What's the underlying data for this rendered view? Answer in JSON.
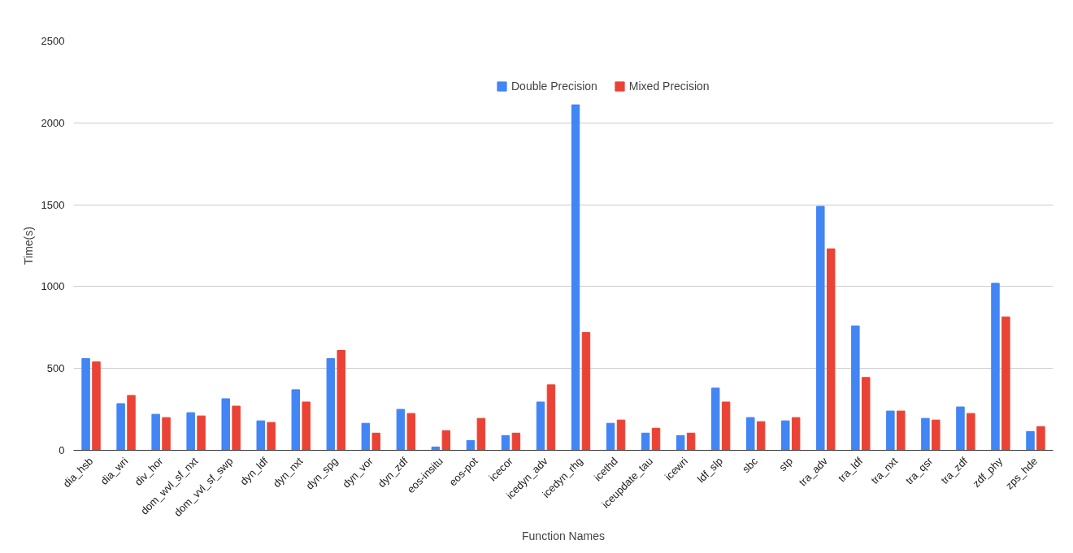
{
  "chart_data": {
    "type": "bar",
    "xlabel": "Function Names",
    "ylabel": "Time(s)",
    "categories": [
      "dia_hsb",
      "dia_wri",
      "div_hor",
      "dom_wvl_sf_nxt",
      "dom_vvl_sf_swp",
      "dyn_ldf",
      "dyn_nxt",
      "dyn_spg",
      "dyn_vor",
      "dyn_zdf",
      "eos-insitu",
      "eos-pot",
      "icecor",
      "icedyn_adv",
      "icedyn_rhg",
      "icethd",
      "iceupdate_tau",
      "icewri",
      "ldf_slp",
      "sbc",
      "stp",
      "tra_adv",
      "tra_ldf",
      "tra_nxt",
      "tra_qsr",
      "tra_zdf",
      "zdf_phy",
      "zps_hde"
    ],
    "series": [
      {
        "name": "Double Precision",
        "color": "#4285f4",
        "values": [
          560,
          285,
          220,
          230,
          315,
          180,
          370,
          560,
          165,
          250,
          20,
          60,
          90,
          295,
          2110,
          165,
          105,
          90,
          380,
          200,
          180,
          1490,
          760,
          240,
          195,
          265,
          1020,
          115
        ]
      },
      {
        "name": "Mixed Precision",
        "color": "#ea4335",
        "values": [
          540,
          335,
          200,
          210,
          270,
          170,
          295,
          610,
          105,
          225,
          120,
          195,
          105,
          400,
          720,
          185,
          135,
          105,
          295,
          175,
          200,
          1230,
          445,
          240,
          185,
          225,
          815,
          145
        ]
      }
    ],
    "ylim": [
      0,
      2500
    ],
    "yticks": [
      0,
      500,
      1000,
      1500,
      2000,
      2500
    ],
    "grid": "y",
    "legend": "top"
  }
}
